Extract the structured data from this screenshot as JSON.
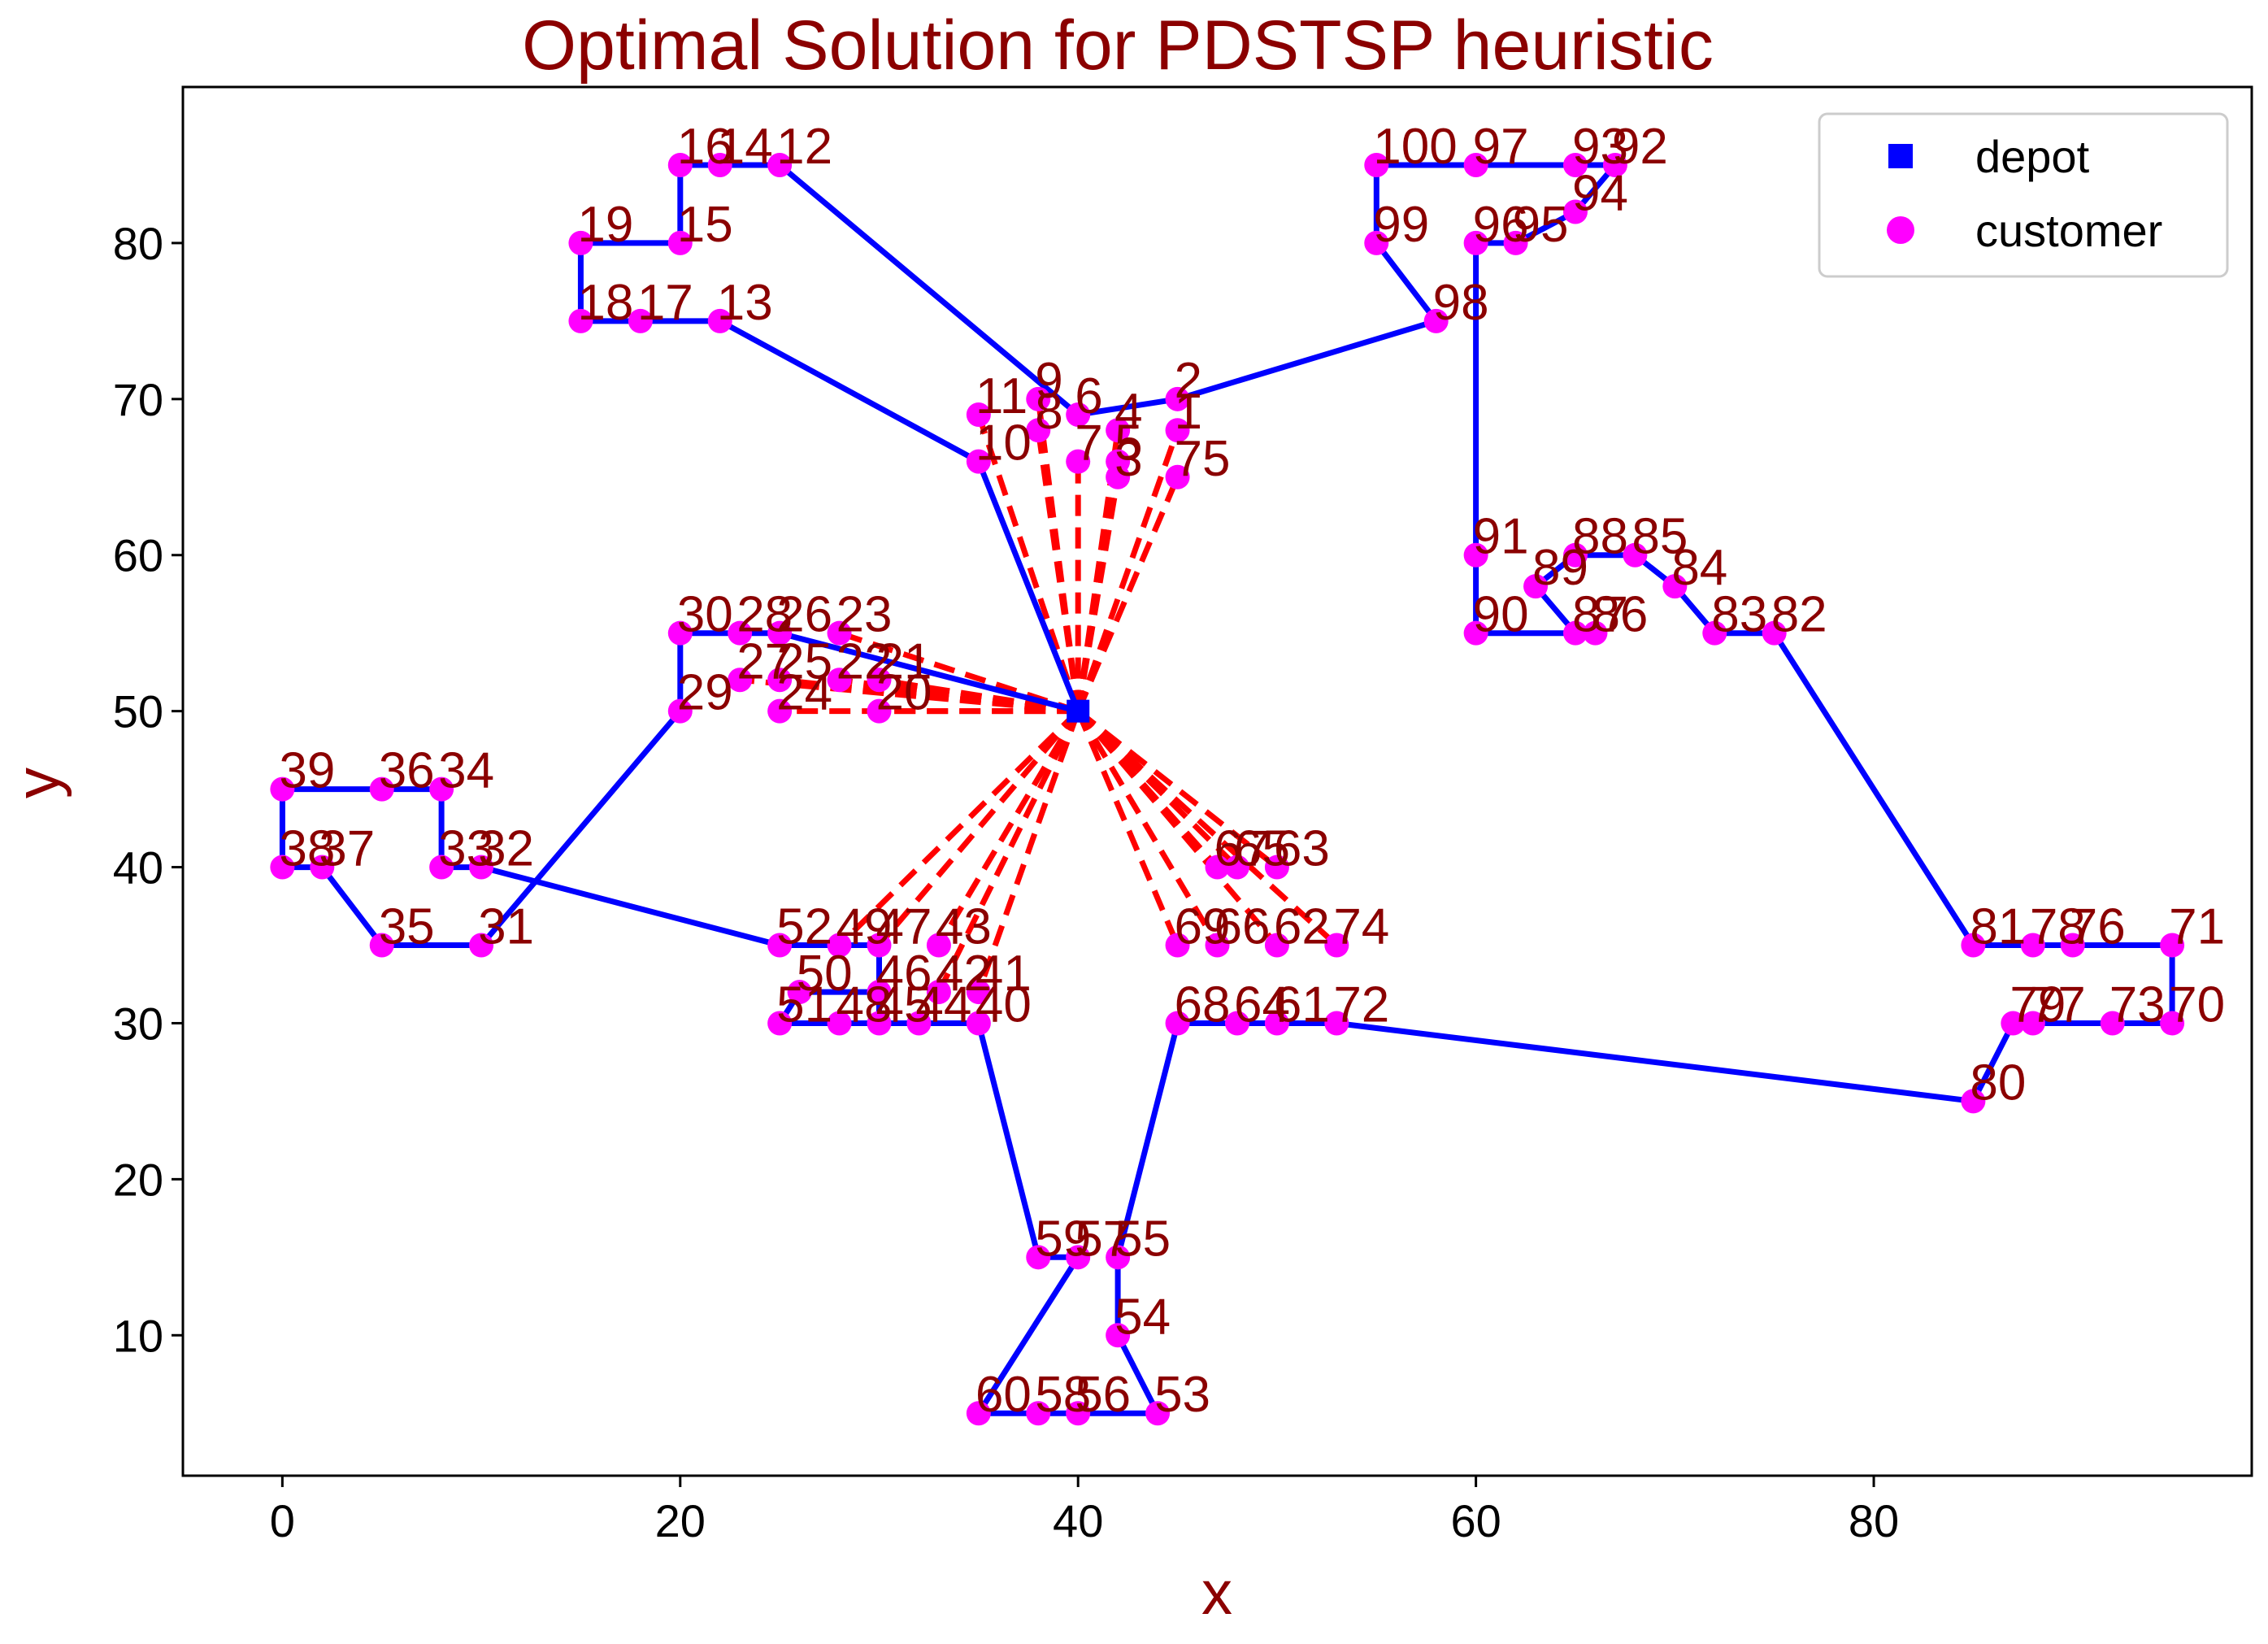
{
  "chart_data": {
    "type": "scatter",
    "title": "Optimal Solution for PDSTSP heuristic",
    "xlabel": "x",
    "ylabel": "y",
    "xlim": [
      -5,
      99
    ],
    "ylim": [
      1,
      90
    ],
    "xticks": [
      "0",
      "20",
      "40",
      "60",
      "80"
    ],
    "yticks": [
      "10",
      "20",
      "30",
      "40",
      "50",
      "60",
      "70",
      "80"
    ],
    "grid": false,
    "legend_position": "top-right",
    "legend": [
      {
        "label": "depot",
        "marker": "square",
        "color": "#0000ff"
      },
      {
        "label": "customer",
        "marker": "circle",
        "color": "#ff00ff"
      }
    ],
    "colors": {
      "title": "#8b0000",
      "labels": "#8b0000",
      "truck_route": "#0000ff",
      "drone_route": "#ff0000",
      "customer": "#ff00ff",
      "depot": "#0000ff"
    },
    "depot": {
      "label": "",
      "x": 40,
      "y": 50
    },
    "customers": [
      {
        "id": "1",
        "x": 45,
        "y": 68
      },
      {
        "id": "2",
        "x": 45,
        "y": 70
      },
      {
        "id": "3",
        "x": 42,
        "y": 65
      },
      {
        "id": "4",
        "x": 42,
        "y": 68
      },
      {
        "id": "5",
        "x": 42,
        "y": 66
      },
      {
        "id": "6",
        "x": 40,
        "y": 69
      },
      {
        "id": "7",
        "x": 40,
        "y": 66
      },
      {
        "id": "8",
        "x": 38,
        "y": 68
      },
      {
        "id": "9",
        "x": 38,
        "y": 70
      },
      {
        "id": "10",
        "x": 35,
        "y": 66
      },
      {
        "id": "11",
        "x": 35,
        "y": 69
      },
      {
        "id": "12",
        "x": 25,
        "y": 85
      },
      {
        "id": "13",
        "x": 22,
        "y": 75
      },
      {
        "id": "14",
        "x": 22,
        "y": 85
      },
      {
        "id": "15",
        "x": 20,
        "y": 80
      },
      {
        "id": "16",
        "x": 20,
        "y": 85
      },
      {
        "id": "17",
        "x": 18,
        "y": 75
      },
      {
        "id": "18",
        "x": 15,
        "y": 75
      },
      {
        "id": "19",
        "x": 15,
        "y": 80
      },
      {
        "id": "20",
        "x": 30,
        "y": 50
      },
      {
        "id": "21",
        "x": 30,
        "y": 52
      },
      {
        "id": "22",
        "x": 28,
        "y": 52
      },
      {
        "id": "23",
        "x": 28,
        "y": 55
      },
      {
        "id": "24",
        "x": 25,
        "y": 50
      },
      {
        "id": "25",
        "x": 25,
        "y": 52
      },
      {
        "id": "26",
        "x": 25,
        "y": 55
      },
      {
        "id": "27",
        "x": 23,
        "y": 52
      },
      {
        "id": "28",
        "x": 23,
        "y": 55
      },
      {
        "id": "29",
        "x": 20,
        "y": 50
      },
      {
        "id": "30",
        "x": 20,
        "y": 55
      },
      {
        "id": "31",
        "x": 10,
        "y": 35
      },
      {
        "id": "32",
        "x": 10,
        "y": 40
      },
      {
        "id": "33",
        "x": 8,
        "y": 40
      },
      {
        "id": "34",
        "x": 8,
        "y": 45
      },
      {
        "id": "35",
        "x": 5,
        "y": 35
      },
      {
        "id": "36",
        "x": 5,
        "y": 45
      },
      {
        "id": "37",
        "x": 2,
        "y": 40
      },
      {
        "id": "38",
        "x": 0,
        "y": 40
      },
      {
        "id": "39",
        "x": 0,
        "y": 45
      },
      {
        "id": "40",
        "x": 35,
        "y": 30
      },
      {
        "id": "41",
        "x": 35,
        "y": 32
      },
      {
        "id": "42",
        "x": 33,
        "y": 32
      },
      {
        "id": "43",
        "x": 33,
        "y": 35
      },
      {
        "id": "44",
        "x": 32,
        "y": 30
      },
      {
        "id": "45",
        "x": 30,
        "y": 30
      },
      {
        "id": "46",
        "x": 30,
        "y": 32
      },
      {
        "id": "47",
        "x": 30,
        "y": 35
      },
      {
        "id": "48",
        "x": 28,
        "y": 30
      },
      {
        "id": "49",
        "x": 28,
        "y": 35
      },
      {
        "id": "50",
        "x": 26,
        "y": 32
      },
      {
        "id": "51",
        "x": 25,
        "y": 30
      },
      {
        "id": "52",
        "x": 25,
        "y": 35
      },
      {
        "id": "53",
        "x": 44,
        "y": 5
      },
      {
        "id": "54",
        "x": 42,
        "y": 10
      },
      {
        "id": "55",
        "x": 42,
        "y": 15
      },
      {
        "id": "56",
        "x": 40,
        "y": 5
      },
      {
        "id": "57",
        "x": 40,
        "y": 15
      },
      {
        "id": "58",
        "x": 38,
        "y": 5
      },
      {
        "id": "59",
        "x": 38,
        "y": 15
      },
      {
        "id": "60",
        "x": 35,
        "y": 5
      },
      {
        "id": "61",
        "x": 50,
        "y": 30
      },
      {
        "id": "62",
        "x": 50,
        "y": 35
      },
      {
        "id": "63",
        "x": 50,
        "y": 40
      },
      {
        "id": "64",
        "x": 48,
        "y": 30
      },
      {
        "id": "65",
        "x": 48,
        "y": 40
      },
      {
        "id": "66",
        "x": 47,
        "y": 35
      },
      {
        "id": "67",
        "x": 47,
        "y": 40
      },
      {
        "id": "68",
        "x": 45,
        "y": 30
      },
      {
        "id": "69",
        "x": 45,
        "y": 35
      },
      {
        "id": "70",
        "x": 95,
        "y": 30
      },
      {
        "id": "71",
        "x": 95,
        "y": 35
      },
      {
        "id": "72",
        "x": 53,
        "y": 30
      },
      {
        "id": "73",
        "x": 92,
        "y": 30
      },
      {
        "id": "74",
        "x": 53,
        "y": 35
      },
      {
        "id": "75",
        "x": 45,
        "y": 65
      },
      {
        "id": "76",
        "x": 90,
        "y": 35
      },
      {
        "id": "77",
        "x": 88,
        "y": 30
      },
      {
        "id": "78",
        "x": 88,
        "y": 35
      },
      {
        "id": "79",
        "x": 87,
        "y": 30
      },
      {
        "id": "80",
        "x": 85,
        "y": 25
      },
      {
        "id": "81",
        "x": 85,
        "y": 35
      },
      {
        "id": "82",
        "x": 75,
        "y": 55
      },
      {
        "id": "83",
        "x": 72,
        "y": 55
      },
      {
        "id": "84",
        "x": 70,
        "y": 58
      },
      {
        "id": "85",
        "x": 68,
        "y": 60
      },
      {
        "id": "86",
        "x": 66,
        "y": 55
      },
      {
        "id": "87",
        "x": 65,
        "y": 55
      },
      {
        "id": "88",
        "x": 65,
        "y": 60
      },
      {
        "id": "89",
        "x": 63,
        "y": 58
      },
      {
        "id": "90",
        "x": 60,
        "y": 55
      },
      {
        "id": "91",
        "x": 60,
        "y": 60
      },
      {
        "id": "92",
        "x": 67,
        "y": 85
      },
      {
        "id": "93",
        "x": 65,
        "y": 85
      },
      {
        "id": "94",
        "x": 65,
        "y": 82
      },
      {
        "id": "95",
        "x": 62,
        "y": 80
      },
      {
        "id": "96",
        "x": 60,
        "y": 80
      },
      {
        "id": "97",
        "x": 60,
        "y": 85
      },
      {
        "id": "98",
        "x": 58,
        "y": 75
      },
      {
        "id": "99",
        "x": 55,
        "y": 80
      },
      {
        "id": "100",
        "x": 55,
        "y": 85
      }
    ],
    "truck_route": [
      "depot",
      "10",
      "13",
      "17",
      "18",
      "19",
      "15",
      "16",
      "14",
      "12",
      "6",
      "2",
      "98",
      "99",
      "100",
      "97",
      "93",
      "92",
      "94",
      "95",
      "96",
      "90",
      "87",
      "89",
      "88",
      "85",
      "84",
      "83",
      "82",
      "81",
      "78",
      "76",
      "71",
      "70",
      "73",
      "77",
      "79",
      "80",
      "72",
      "61",
      "64",
      "68",
      "55",
      "54",
      "53",
      "56",
      "58",
      "60",
      "57",
      "59",
      "40",
      "44",
      "45",
      "46",
      "50",
      "51",
      "48",
      "45",
      "47",
      "52",
      "32",
      "33",
      "34",
      "36",
      "39",
      "38",
      "37",
      "35",
      "31",
      "29",
      "30",
      "28",
      "26",
      "depot"
    ],
    "drone_targets": [
      "11",
      "9",
      "8",
      "7",
      "4",
      "3",
      "5",
      "1",
      "75",
      "27",
      "25",
      "22",
      "21",
      "24",
      "20",
      "23",
      "49",
      "47",
      "43",
      "42",
      "41",
      "69",
      "66",
      "67",
      "65",
      "63",
      "62",
      "74"
    ]
  }
}
